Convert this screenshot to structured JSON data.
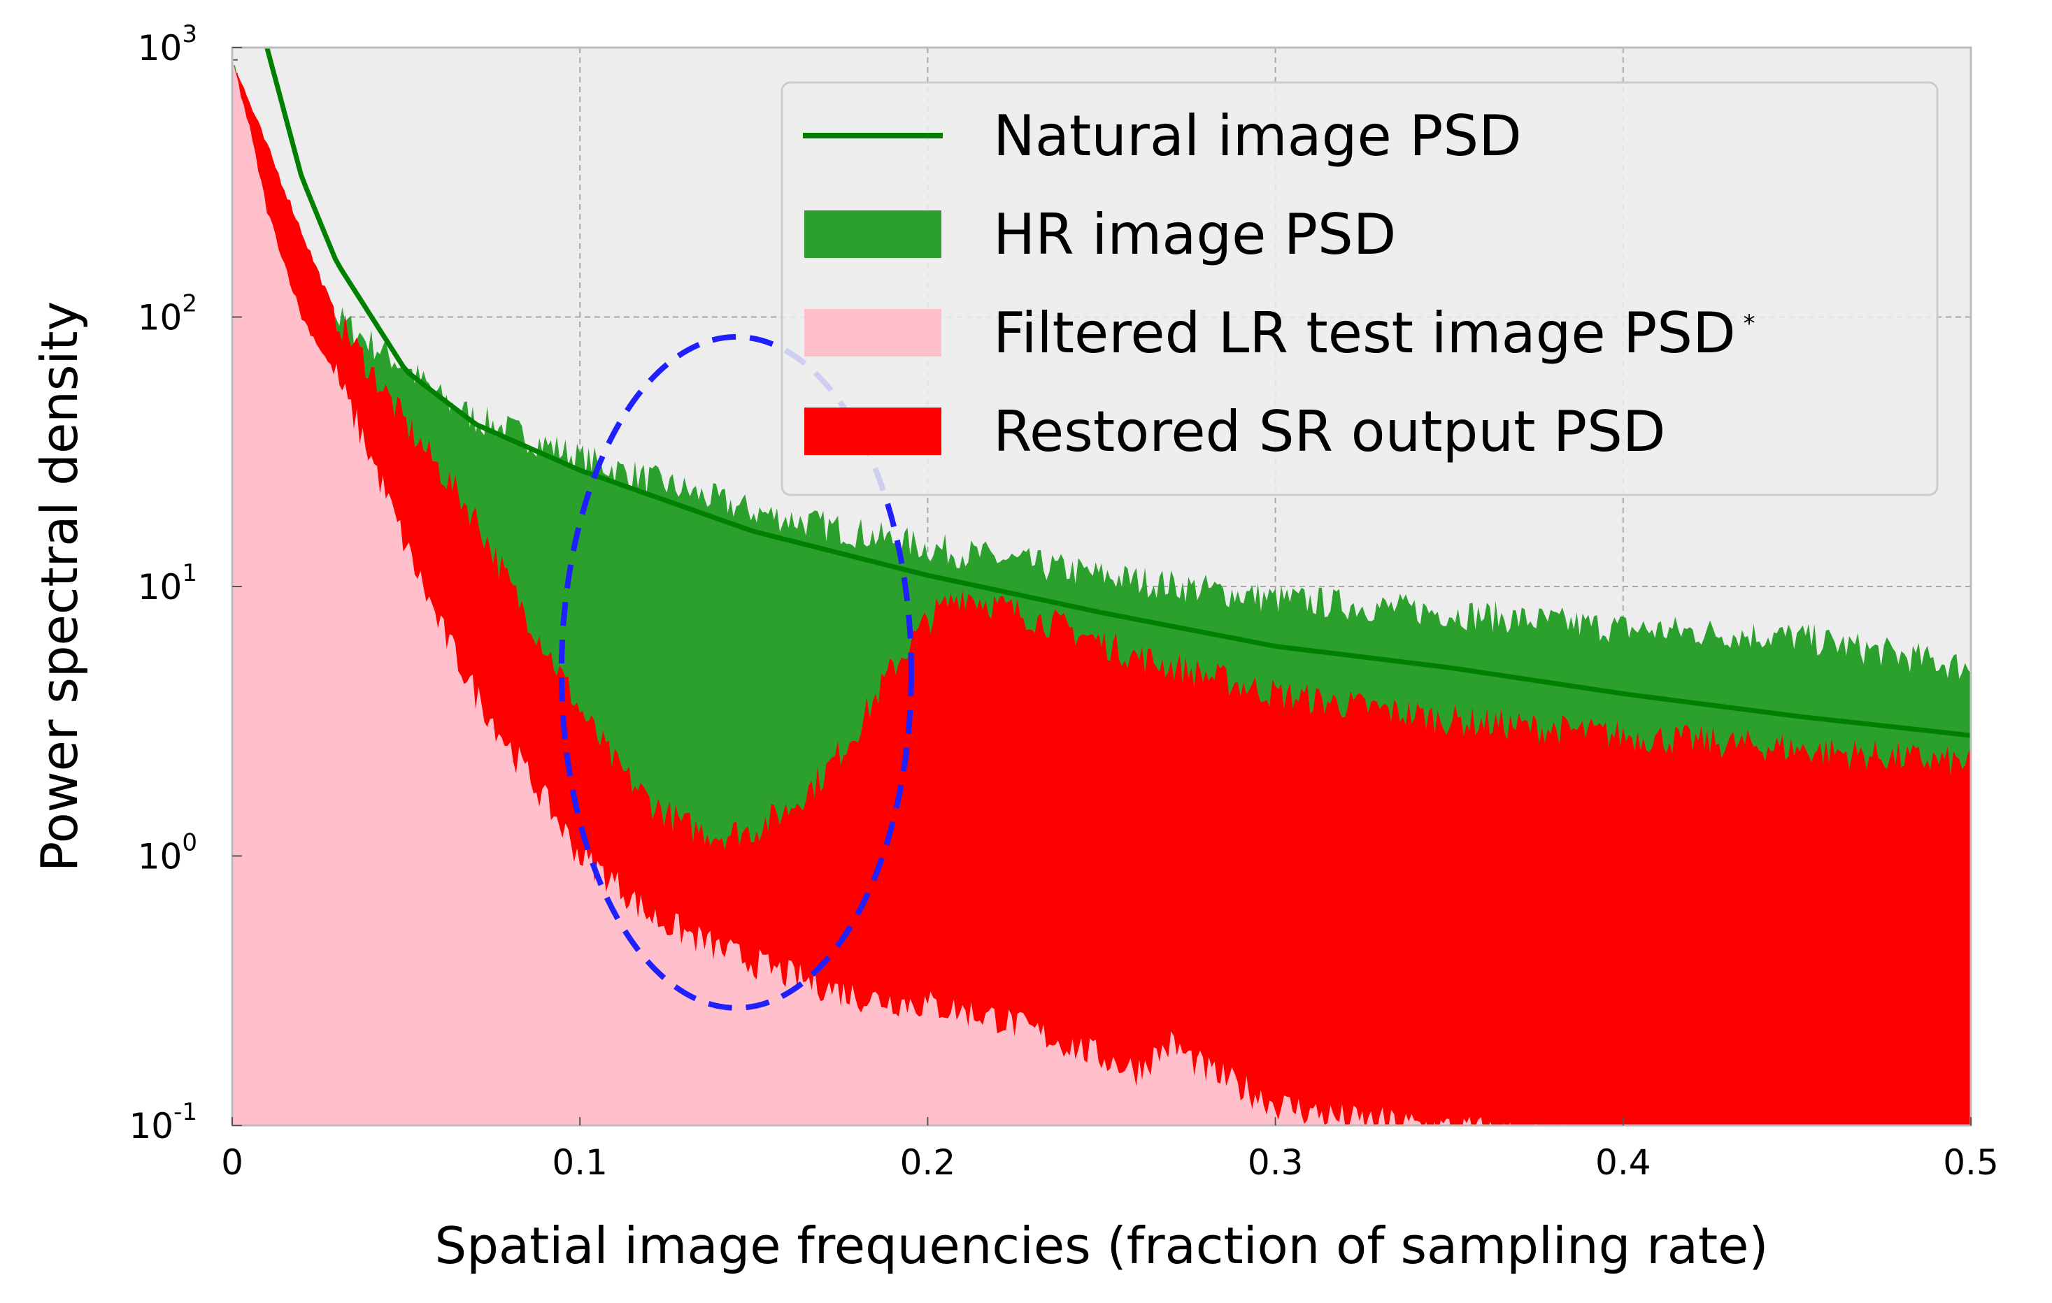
{
  "chart_data": {
    "type": "area",
    "xlabel": "Spatial image frequencies (fraction of sampling rate)",
    "ylabel": "Power spectral density",
    "xlim": [
      0,
      0.5
    ],
    "ylim": [
      0.1,
      1000
    ],
    "yscale": "log",
    "grid": true,
    "legend_position": "top-right",
    "x_ticks": [
      {
        "value": 0,
        "label": "0"
      },
      {
        "value": 0.1,
        "label": "0.1"
      },
      {
        "value": 0.2,
        "label": "0.2"
      },
      {
        "value": 0.3,
        "label": "0.3"
      },
      {
        "value": 0.4,
        "label": "0.4"
      },
      {
        "value": 0.5,
        "label": "0.5"
      }
    ],
    "y_ticks": [
      {
        "value": 0.1,
        "base": "10",
        "exp": "-1"
      },
      {
        "value": 1,
        "base": "10",
        "exp": "0"
      },
      {
        "value": 10,
        "base": "10",
        "exp": "1"
      },
      {
        "value": 100,
        "base": "10",
        "exp": "2"
      },
      {
        "value": 1000,
        "base": "10",
        "exp": "3"
      }
    ],
    "series": [
      {
        "name": "Natural image PSD",
        "kind": "line",
        "color": "#008000",
        "x": [
          0.01,
          0.02,
          0.03,
          0.05,
          0.07,
          0.1,
          0.15,
          0.2,
          0.25,
          0.3,
          0.35,
          0.4,
          0.45,
          0.5
        ],
        "y": [
          1000,
          330,
          160,
          63,
          40,
          27,
          16,
          11,
          8,
          6,
          5,
          4,
          3.3,
          2.8
        ]
      },
      {
        "name": "HR image PSD",
        "kind": "area",
        "color": "#2ca02c",
        "x": [
          0,
          0.01,
          0.02,
          0.03,
          0.04,
          0.05,
          0.06,
          0.07,
          0.08,
          0.1,
          0.12,
          0.15,
          0.2,
          0.25,
          0.3,
          0.35,
          0.4,
          0.45,
          0.5
        ],
        "y": [
          900,
          350,
          160,
          100,
          80,
          65,
          50,
          42,
          38,
          30,
          25,
          19,
          14,
          11,
          9,
          8,
          7,
          6.5,
          5
        ]
      },
      {
        "name": "Filtered LR test image PSD",
        "name_suffix": "*",
        "kind": "area",
        "color": "#ffc0cb",
        "x": [
          0,
          0.005,
          0.01,
          0.02,
          0.03,
          0.04,
          0.05,
          0.06,
          0.07,
          0.08,
          0.09,
          0.1,
          0.11,
          0.12,
          0.14,
          0.16,
          0.18,
          0.2,
          0.22,
          0.24,
          0.26,
          0.27,
          0.28,
          0.3,
          0.32,
          0.34,
          0.36,
          0.38,
          0.4,
          0.42,
          0.44,
          0.46,
          0.48,
          0.5
        ],
        "y": [
          900,
          500,
          250,
          100,
          60,
          30,
          14,
          7,
          4,
          2.5,
          1.6,
          1.0,
          0.8,
          0.6,
          0.45,
          0.36,
          0.3,
          0.28,
          0.25,
          0.2,
          0.16,
          0.2,
          0.16,
          0.12,
          0.105,
          0.1,
          0.095,
          0.09,
          0.085,
          0.08,
          0.075,
          0.07,
          0.068,
          0.065
        ]
      },
      {
        "name": "Restored SR output PSD",
        "kind": "area",
        "color": "#ff0000",
        "x": [
          0,
          0.03,
          0.05,
          0.07,
          0.08,
          0.09,
          0.1,
          0.11,
          0.12,
          0.13,
          0.14,
          0.15,
          0.16,
          0.17,
          0.18,
          0.19,
          0.2,
          0.21,
          0.22,
          0.24,
          0.26,
          0.3,
          0.35,
          0.4,
          0.45,
          0.5
        ],
        "y": [
          900,
          100,
          40,
          18,
          10,
          6,
          3.5,
          2.2,
          1.6,
          1.3,
          1.2,
          1.25,
          1.5,
          2.0,
          3.0,
          5.0,
          7.5,
          9.5,
          8.5,
          7.0,
          5.5,
          4.0,
          3.2,
          2.8,
          2.5,
          2.2
        ]
      }
    ],
    "annotations": [
      {
        "shape": "dashed-circle",
        "color": "#1f1fff",
        "center_x": 0.145,
        "center_y": 4.8
      }
    ]
  }
}
